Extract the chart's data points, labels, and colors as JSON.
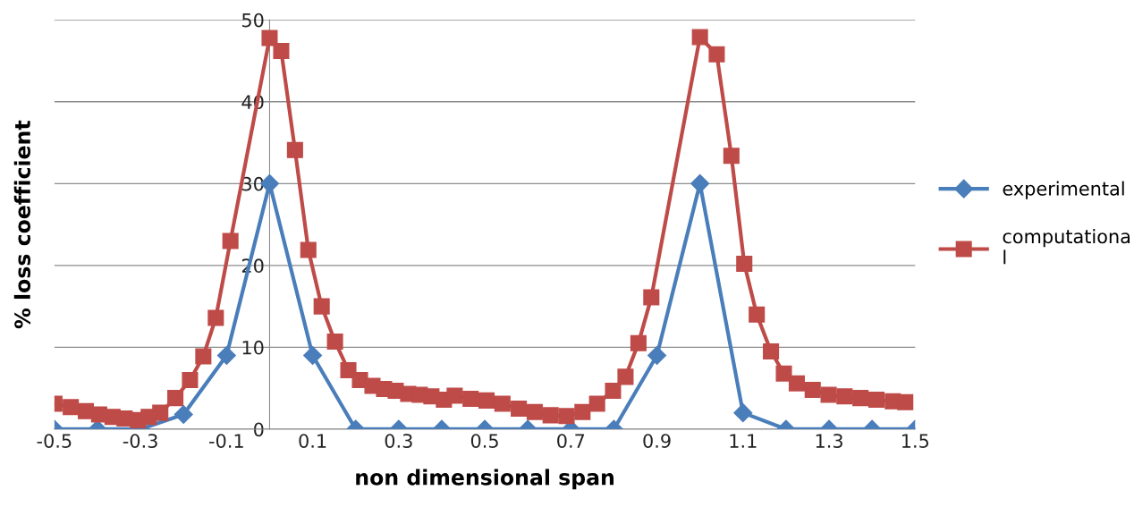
{
  "chart_data": {
    "type": "line",
    "xlabel": "non dimensional span",
    "ylabel": "% loss coefficient",
    "xlim": [
      -0.5,
      1.5
    ],
    "ylim": [
      0,
      50
    ],
    "xticks": [
      -0.5,
      -0.3,
      -0.1,
      0.1,
      0.3,
      0.5,
      0.7,
      0.9,
      1.1,
      1.3,
      1.5
    ],
    "yticks": [
      0,
      10,
      20,
      30,
      40,
      50
    ],
    "grid": "y",
    "legend": "right",
    "series": [
      {
        "name": "experimental",
        "color": "#4a7ebb",
        "marker": "diamond",
        "x": [
          -0.5,
          -0.4,
          -0.3,
          -0.2,
          -0.1,
          0.0,
          0.1,
          0.2,
          0.3,
          0.4,
          0.5,
          0.6,
          0.7,
          0.8,
          0.9,
          1.0,
          1.1,
          1.2,
          1.3,
          1.4,
          1.5
        ],
        "values": [
          0,
          0,
          0,
          1.8,
          9,
          30,
          9,
          0,
          0,
          0,
          0,
          0,
          0,
          0,
          9,
          30,
          2,
          0,
          0,
          0,
          0
        ]
      },
      {
        "name": "computationa\nl",
        "color": "#be4b48",
        "marker": "square",
        "x": [
          -0.5,
          -0.462,
          -0.427,
          -0.396,
          -0.365,
          -0.337,
          -0.306,
          -0.281,
          -0.254,
          -0.219,
          -0.185,
          -0.154,
          -0.125,
          -0.091,
          0.0,
          0.027,
          0.059,
          0.09,
          0.121,
          0.152,
          0.183,
          0.21,
          0.239,
          0.266,
          0.293,
          0.322,
          0.349,
          0.376,
          0.405,
          0.43,
          0.467,
          0.504,
          0.541,
          0.579,
          0.616,
          0.653,
          0.69,
          0.727,
          0.761,
          0.798,
          0.827,
          0.857,
          0.887,
          1.0,
          1.039,
          1.073,
          1.103,
          1.132,
          1.165,
          1.195,
          1.225,
          1.262,
          1.299,
          1.336,
          1.373,
          1.41,
          1.448,
          1.477
        ],
        "values": [
          3.1,
          2.7,
          2.2,
          1.8,
          1.5,
          1.3,
          1.1,
          1.5,
          2.0,
          3.8,
          6.0,
          8.9,
          13.6,
          23.0,
          47.8,
          46.2,
          34.1,
          21.9,
          15.0,
          10.7,
          7.2,
          6.0,
          5.3,
          4.9,
          4.7,
          4.3,
          4.2,
          4.0,
          3.6,
          4.1,
          3.7,
          3.5,
          3.1,
          2.5,
          2.1,
          1.7,
          1.6,
          2.1,
          3.1,
          4.7,
          6.4,
          10.5,
          16.1,
          47.9,
          45.8,
          33.4,
          20.2,
          14.0,
          9.5,
          6.8,
          5.6,
          4.8,
          4.2,
          4.0,
          3.8,
          3.6,
          3.4,
          3.3
        ]
      }
    ]
  }
}
